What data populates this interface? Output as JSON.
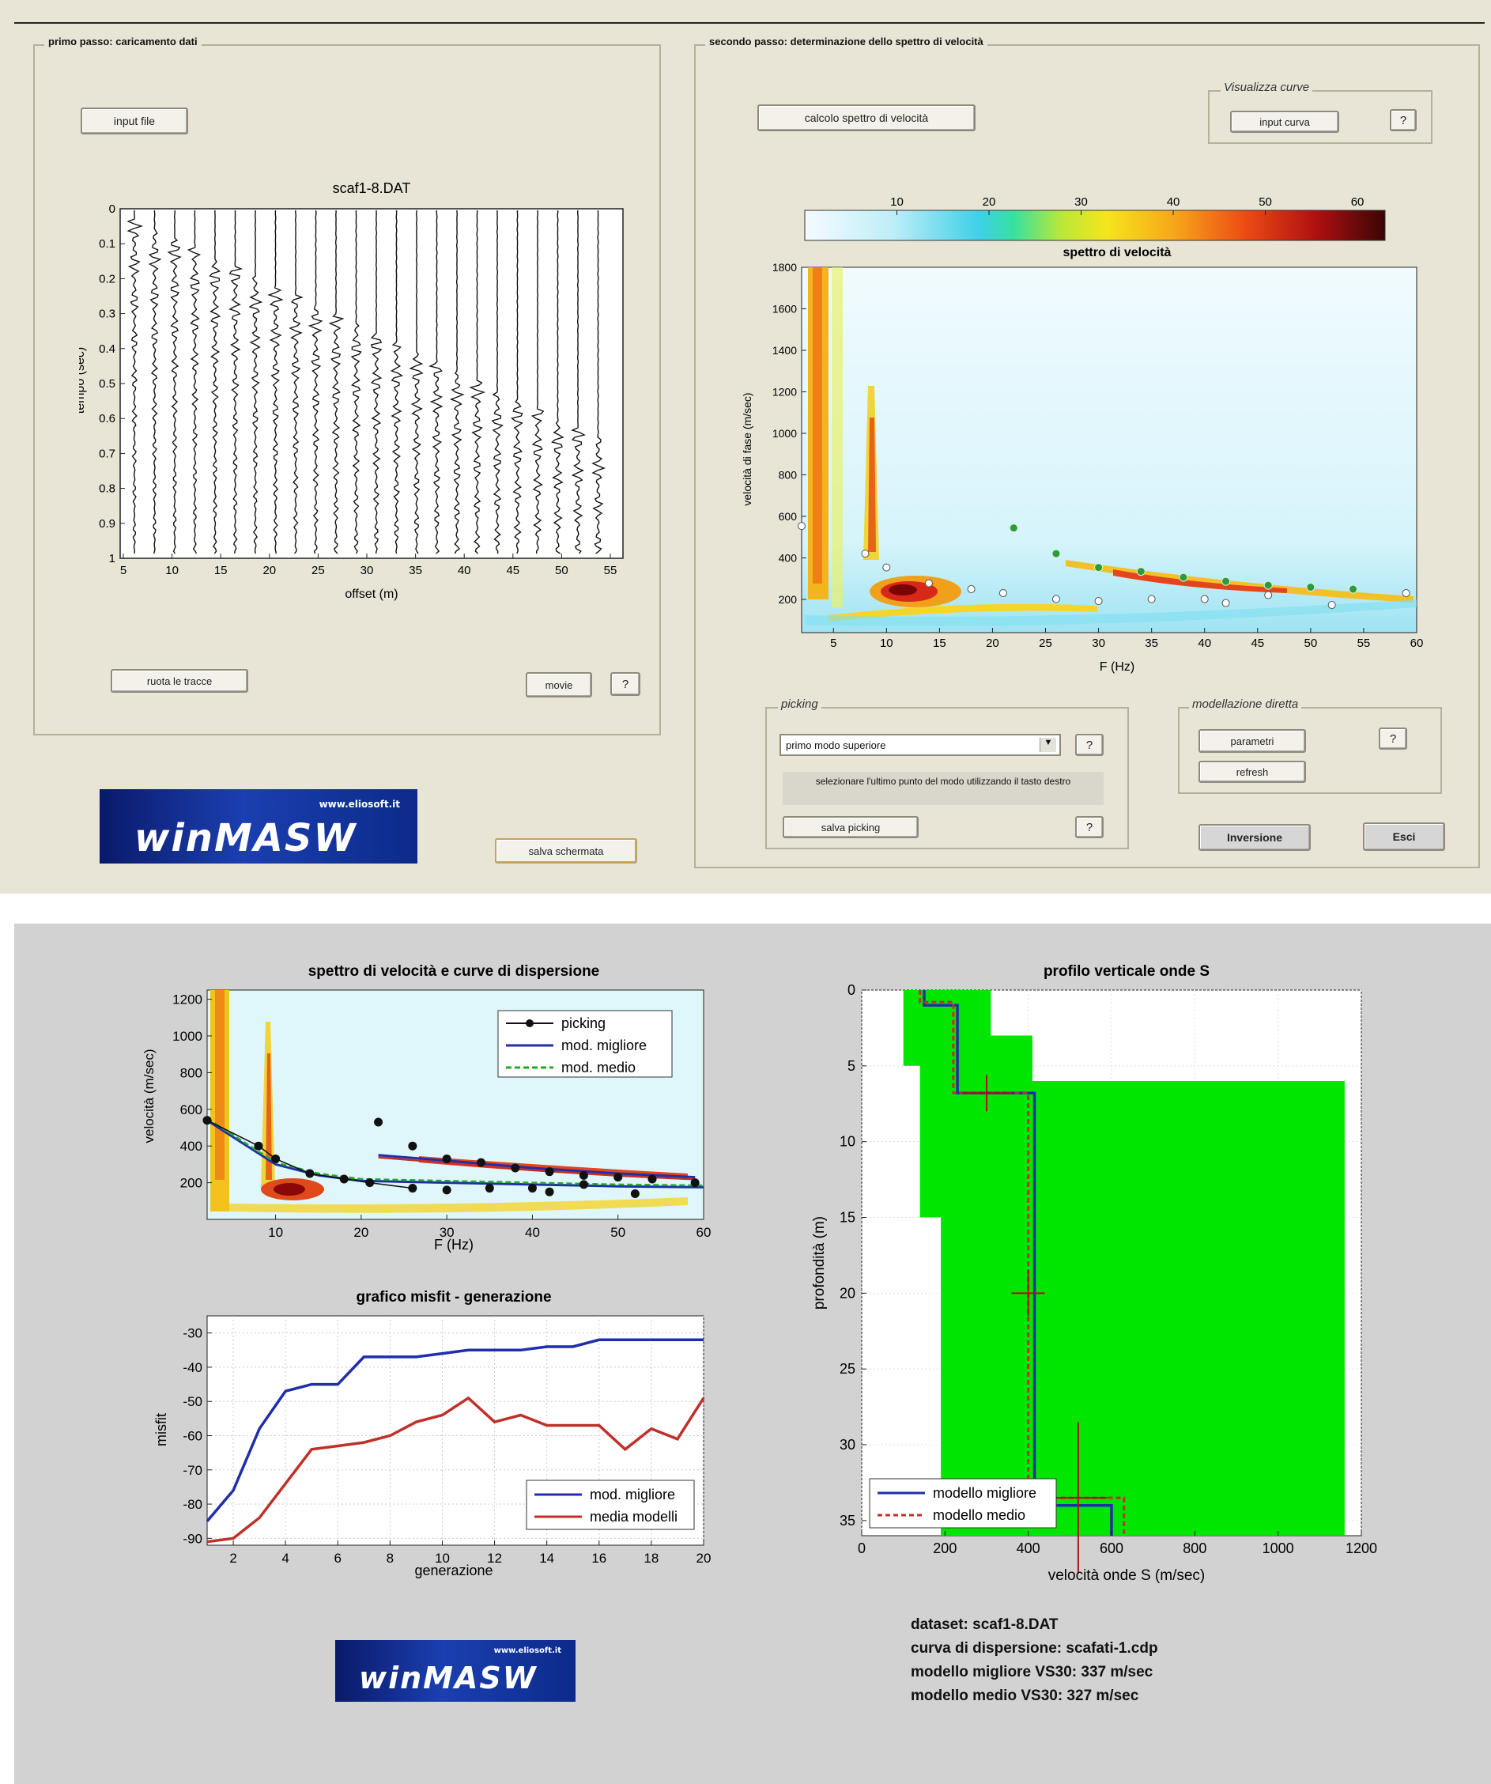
{
  "step1": {
    "title": "primo passo: caricamento dati",
    "input_file_button": "input file",
    "seismogram_title": "scaf1-8.DAT",
    "y_label": "tempo (sec)",
    "x_label": "offset (m)",
    "y_ticks": [
      "0",
      "0.1",
      "0.2",
      "0.3",
      "0.4",
      "0.5",
      "0.6",
      "0.7",
      "0.8",
      "0.9",
      "1"
    ],
    "x_ticks": [
      "5",
      "10",
      "15",
      "20",
      "25",
      "30",
      "35",
      "40",
      "45",
      "50",
      "55"
    ],
    "rotate_button": "ruota le tracce",
    "movie_button": "movie",
    "help": "?",
    "save_button": "salva schermata"
  },
  "step2": {
    "title": "secondo passo: determinazione dello spettro di velocità",
    "compute_button": "calcolo spettro di velocità",
    "view_curves_title": "Visualizza curve",
    "input_curve_button": "input curva",
    "help": "?",
    "colorbar_ticks": [
      "10",
      "20",
      "30",
      "40",
      "50",
      "60"
    ],
    "spectrum_title": "spettro di velocità",
    "y_label": "velocità di fase (m/sec)",
    "x_label": "F (Hz)",
    "y_ticks": [
      "200",
      "400",
      "600",
      "800",
      "1000",
      "1200",
      "1400",
      "1600",
      "1800"
    ],
    "x_ticks": [
      "5",
      "10",
      "15",
      "20",
      "25",
      "30",
      "35",
      "40",
      "45",
      "50",
      "55",
      "60"
    ],
    "picking_title": "picking",
    "picking_select_value": "primo modo superiore",
    "picking_hint": "selezionare l'ultimo punto del modo utilizzando il tasto destro",
    "save_picking_button": "salva picking",
    "forward_title": "modellazione diretta",
    "params_button": "parametri",
    "refresh_button": "refresh",
    "inversion_button": "Inversione",
    "exit_button": "Esci"
  },
  "logo": {
    "text": "winMASW",
    "url": "www.eliosoft.it"
  },
  "results": {
    "dispersion_chart": {
      "title": "spettro di velocità e curve di dispersione",
      "y_label": "velocità (m/sec)",
      "x_label": "F (Hz)",
      "y_ticks": [
        "200",
        "400",
        "600",
        "800",
        "1000",
        "1200"
      ],
      "x_ticks": [
        "10",
        "20",
        "30",
        "40",
        "50",
        "60"
      ],
      "legend": [
        "picking",
        "mod. migliore",
        "mod. medio"
      ]
    },
    "misfit_chart": {
      "title": "grafico misfit - generazione",
      "y_label": "misfit",
      "x_label": "generazione",
      "y_ticks": [
        "-30",
        "-40",
        "-50",
        "-60",
        "-70",
        "-80",
        "-90"
      ],
      "x_ticks": [
        "2",
        "4",
        "6",
        "8",
        "10",
        "12",
        "14",
        "16",
        "18",
        "20"
      ],
      "legend": [
        "mod. migliore",
        "media modelli"
      ]
    },
    "profile_chart": {
      "title": "profilo verticale onde S",
      "y_label": "profondità (m)",
      "x_label": "velocità onde S (m/sec)",
      "y_ticks": [
        "0",
        "5",
        "10",
        "15",
        "20",
        "25",
        "30",
        "35"
      ],
      "x_ticks": [
        "0",
        "200",
        "400",
        "600",
        "800",
        "1000",
        "1200"
      ],
      "legend": [
        "modello migliore",
        "modello medio"
      ]
    },
    "info": {
      "dataset": "dataset: scaf1-8.DAT",
      "curve": "curva di dispersione: scafati-1.cdp",
      "best_vs30": "modello migliore VS30: 337 m/sec",
      "mean_vs30": "modello medio VS30: 327 m/sec"
    }
  },
  "chart_data": [
    {
      "type": "line",
      "title": "grafico misfit - generazione",
      "xlabel": "generazione",
      "ylabel": "misfit",
      "xlim": [
        1,
        20
      ],
      "ylim": [
        -92,
        -25
      ],
      "x": [
        1,
        2,
        3,
        4,
        5,
        6,
        7,
        8,
        9,
        10,
        11,
        12,
        13,
        14,
        15,
        16,
        17,
        18,
        19,
        20
      ],
      "series": [
        {
          "name": "mod. migliore",
          "color": "#1f2fa8",
          "values": [
            -85,
            -76,
            -58,
            -47,
            -45,
            -45,
            -37,
            -37,
            -37,
            -36,
            -35,
            -35,
            -35,
            -34,
            -34,
            -32,
            -32,
            -32,
            -32,
            -32
          ]
        },
        {
          "name": "media modelli",
          "color": "#c0302a",
          "values": [
            -91,
            -90,
            -84,
            -74,
            -64,
            -63,
            -62,
            -60,
            -56,
            -54,
            -49,
            -56,
            -54,
            -57,
            -57,
            -57,
            -64,
            -58,
            -61,
            -49
          ]
        }
      ]
    },
    {
      "type": "line",
      "title": "profilo verticale onde S",
      "xlabel": "velocità onde S (m/sec)",
      "ylabel": "profondità (m)",
      "xlim": [
        0,
        1200
      ],
      "ylim": [
        36,
        0
      ],
      "series": [
        {
          "name": "modello migliore",
          "color": "#1f2fa8",
          "vs": [
            150,
            230,
            415,
            600
          ],
          "top": [
            0,
            1.0,
            6.8,
            34.0
          ],
          "bottom": 36
        },
        {
          "name": "modello medio",
          "color": "#c0302a",
          "vs": [
            140,
            220,
            400,
            630
          ],
          "top": [
            0,
            0.8,
            6.8,
            33.5
          ],
          "bottom": 36
        }
      ]
    },
    {
      "type": "scatter",
      "title": "spettro di velocità e curve di dispersione",
      "xlabel": "F (Hz)",
      "ylabel": "velocità (m/sec)",
      "xlim": [
        2,
        60
      ],
      "ylim": [
        0,
        1250
      ],
      "series": [
        {
          "name": "picking",
          "x": [
            2,
            8,
            10,
            14,
            18,
            21,
            26,
            30,
            35,
            40,
            42,
            46,
            52,
            59
          ],
          "values": [
            540,
            400,
            330,
            250,
            220,
            200,
            170,
            160,
            170,
            170,
            150,
            190,
            140,
            200
          ]
        },
        {
          "name": "picking",
          "x": [
            22,
            26,
            30,
            34,
            38,
            42,
            46,
            50,
            54
          ],
          "values": [
            530,
            400,
            330,
            310,
            280,
            260,
            240,
            230,
            220
          ]
        }
      ]
    }
  ]
}
